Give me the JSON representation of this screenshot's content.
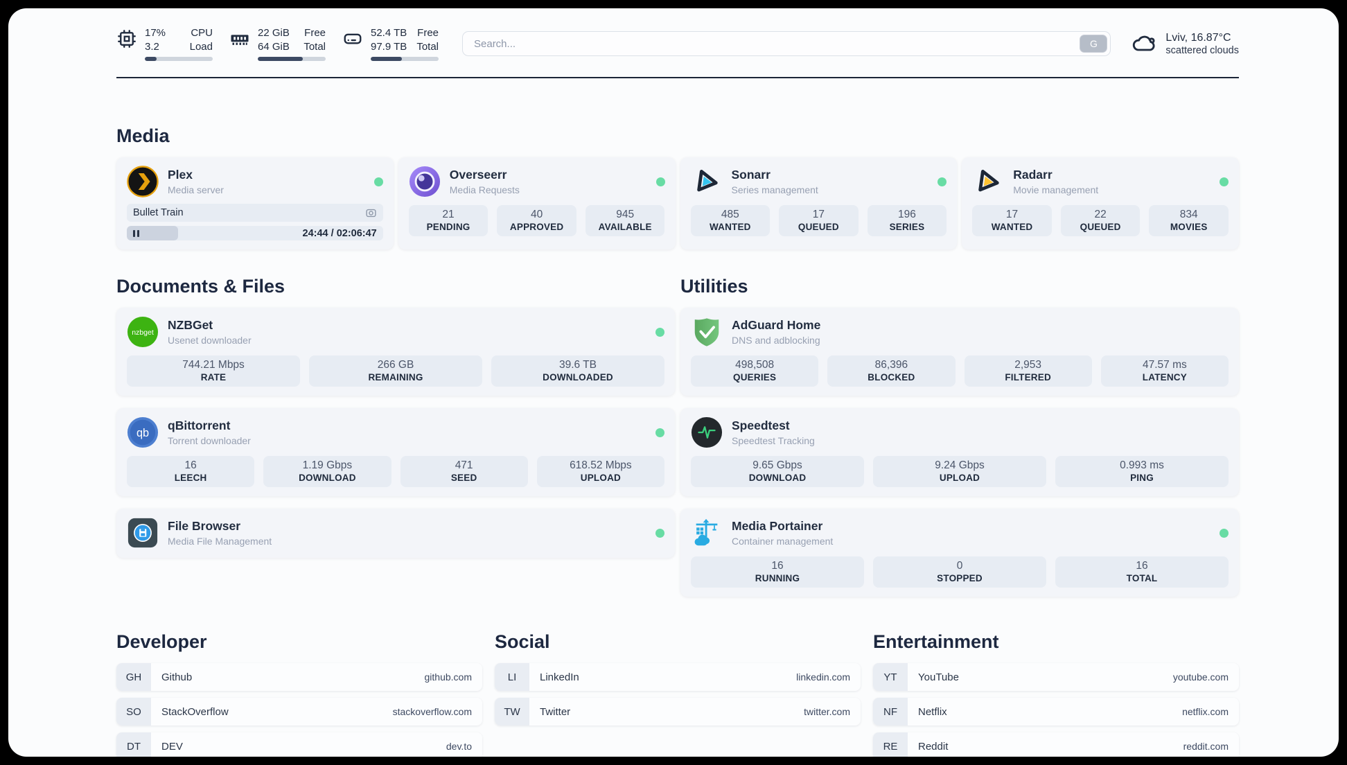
{
  "colors": {
    "status_online": "#68dca4",
    "accent_plex": "#e5a00d",
    "accent_sonarr": "#35c5f0",
    "accent_radarr": "#ffc230",
    "accent_nzbget": "#3db312",
    "accent_qbittorrent": "#4d7fd0",
    "accent_adguard": "#67b279",
    "accent_speedtest": "#3bd07e",
    "accent_portainer": "#29abe2"
  },
  "topbar": {
    "cpu": {
      "usage": "17%",
      "load": "3.2",
      "label_top": "CPU",
      "label_bottom": "Load",
      "progress_pct": 17
    },
    "memory": {
      "free": "22 GiB",
      "total": "64 GiB",
      "label_top": "Free",
      "label_bottom": "Total",
      "progress_pct": 66
    },
    "disk": {
      "free": "52.4 TB",
      "total": "97.9 TB",
      "label_top": "Free",
      "label_bottom": "Total",
      "progress_pct": 46
    },
    "search": {
      "placeholder": "Search...",
      "button_label": "G"
    },
    "weather": {
      "location": "Lviv, 16.87°C",
      "condition": "scattered clouds"
    }
  },
  "media": {
    "title": "Media",
    "plex": {
      "title": "Plex",
      "subtitle": "Media server",
      "now_playing": "Bullet Train",
      "time": "24:44 / 02:06:47",
      "progress_pct": 20
    },
    "overseerr": {
      "title": "Overseerr",
      "subtitle": "Media Requests",
      "stats": [
        {
          "value": "21",
          "label": "PENDING"
        },
        {
          "value": "40",
          "label": "APPROVED"
        },
        {
          "value": "945",
          "label": "AVAILABLE"
        }
      ]
    },
    "sonarr": {
      "title": "Sonarr",
      "subtitle": "Series management",
      "stats": [
        {
          "value": "485",
          "label": "WANTED"
        },
        {
          "value": "17",
          "label": "QUEUED"
        },
        {
          "value": "196",
          "label": "SERIES"
        }
      ]
    },
    "radarr": {
      "title": "Radarr",
      "subtitle": "Movie management",
      "stats": [
        {
          "value": "17",
          "label": "WANTED"
        },
        {
          "value": "22",
          "label": "QUEUED"
        },
        {
          "value": "834",
          "label": "MOVIES"
        }
      ]
    }
  },
  "documents": {
    "title": "Documents & Files",
    "nzbget": {
      "title": "NZBGet",
      "subtitle": "Usenet downloader",
      "logo_text": "nzbget",
      "stats": [
        {
          "value": "744.21 Mbps",
          "label": "RATE"
        },
        {
          "value": "266 GB",
          "label": "REMAINING"
        },
        {
          "value": "39.6 TB",
          "label": "DOWNLOADED"
        }
      ]
    },
    "qbittorrent": {
      "title": "qBittorrent",
      "subtitle": "Torrent downloader",
      "logo_text": "qb",
      "stats": [
        {
          "value": "16",
          "label": "LEECH"
        },
        {
          "value": "1.19 Gbps",
          "label": "DOWNLOAD"
        },
        {
          "value": "471",
          "label": "SEED"
        },
        {
          "value": "618.52 Mbps",
          "label": "UPLOAD"
        }
      ]
    },
    "filebrowser": {
      "title": "File Browser",
      "subtitle": "Media File Management"
    }
  },
  "utilities": {
    "title": "Utilities",
    "adguard": {
      "title": "AdGuard Home",
      "subtitle": "DNS and adblocking",
      "stats": [
        {
          "value": "498,508",
          "label": "QUERIES"
        },
        {
          "value": "86,396",
          "label": "BLOCKED"
        },
        {
          "value": "2,953",
          "label": "FILTERED"
        },
        {
          "value": "47.57 ms",
          "label": "LATENCY"
        }
      ]
    },
    "speedtest": {
      "title": "Speedtest",
      "subtitle": "Speedtest Tracking",
      "stats": [
        {
          "value": "9.65 Gbps",
          "label": "DOWNLOAD"
        },
        {
          "value": "9.24 Gbps",
          "label": "UPLOAD"
        },
        {
          "value": "0.993 ms",
          "label": "PING"
        }
      ]
    },
    "portainer": {
      "title": "Media Portainer",
      "subtitle": "Container management",
      "stats": [
        {
          "value": "16",
          "label": "RUNNING"
        },
        {
          "value": "0",
          "label": "STOPPED"
        },
        {
          "value": "16",
          "label": "TOTAL"
        }
      ]
    }
  },
  "bookmarks": {
    "developer": {
      "title": "Developer",
      "items": [
        {
          "abbr": "GH",
          "name": "Github",
          "url": "github.com"
        },
        {
          "abbr": "SO",
          "name": "StackOverflow",
          "url": "stackoverflow.com"
        },
        {
          "abbr": "DT",
          "name": "DEV",
          "url": "dev.to"
        }
      ]
    },
    "social": {
      "title": "Social",
      "items": [
        {
          "abbr": "LI",
          "name": "LinkedIn",
          "url": "linkedin.com"
        },
        {
          "abbr": "TW",
          "name": "Twitter",
          "url": "twitter.com"
        }
      ]
    },
    "entertainment": {
      "title": "Entertainment",
      "items": [
        {
          "abbr": "YT",
          "name": "YouTube",
          "url": "youtube.com"
        },
        {
          "abbr": "NF",
          "name": "Netflix",
          "url": "netflix.com"
        },
        {
          "abbr": "RE",
          "name": "Reddit",
          "url": "reddit.com"
        }
      ]
    }
  }
}
